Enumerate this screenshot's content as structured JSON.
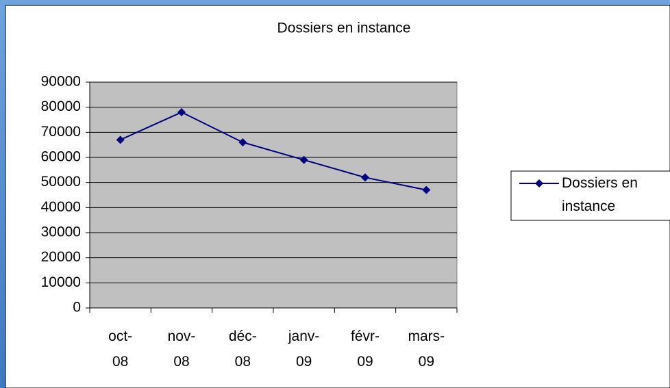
{
  "chart_data": {
    "type": "line",
    "title": "Dossiers en instance",
    "categories": [
      "oct-08",
      "nov-08",
      "déc-08",
      "janv-09",
      "févr-09",
      "mars-09"
    ],
    "series": [
      {
        "name": "Dossiers en instance",
        "color": "#000080",
        "values": [
          67000,
          78000,
          66000,
          59000,
          52000,
          47000
        ]
      }
    ],
    "ylim": [
      0,
      90000
    ],
    "yticks": [
      0,
      10000,
      20000,
      30000,
      40000,
      50000,
      60000,
      70000,
      80000,
      90000
    ],
    "grid": true,
    "plot_background": "#c0c0c0",
    "legend": "right"
  }
}
